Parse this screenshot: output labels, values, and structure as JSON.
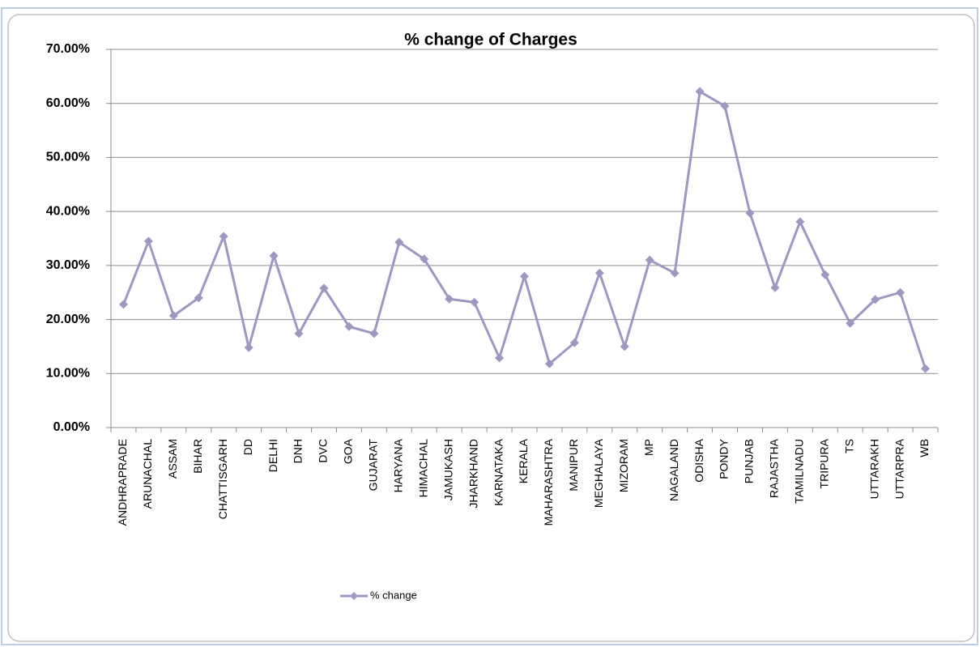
{
  "chart_data": {
    "type": "line",
    "title": "% change of Charges",
    "categories": [
      "ANDHRAPRADE",
      "ARUNACHAL",
      "ASSAM",
      "BIHAR",
      "CHATTISGARH",
      "DD",
      "DELHI",
      "DNH",
      "DVC",
      "GOA",
      "GUJARAT",
      "HARYANA",
      "HIMACHAL",
      "JAMUKASH",
      "JHARKHAND",
      "KARNATAKA",
      "KERALA",
      "MAHARASHTRA",
      "MANIPUR",
      "MEGHALAYA",
      "MIZORAM",
      "MP",
      "NAGALAND",
      "ODISHA",
      "PONDY",
      "PUNJAB",
      "RAJASTHA",
      "TAMILNADU",
      "TRIPURA",
      "TS",
      "UTTARAKH",
      "UTTARPRA",
      "WB"
    ],
    "series": [
      {
        "name": "% change",
        "color": "#9f97c2",
        "values": [
          22.8,
          34.5,
          20.7,
          24.0,
          35.4,
          14.8,
          31.8,
          17.4,
          25.8,
          18.7,
          17.4,
          34.3,
          31.2,
          23.8,
          23.2,
          12.9,
          28.0,
          11.8,
          15.7,
          28.6,
          15.0,
          31.0,
          28.6,
          62.2,
          59.5,
          39.7,
          25.9,
          38.1,
          28.3,
          19.3,
          23.7,
          25.0,
          10.9
        ]
      }
    ],
    "ylim": [
      0,
      70
    ],
    "yticks": [
      {
        "value": 0,
        "label": "0.00%"
      },
      {
        "value": 10,
        "label": "10.00%"
      },
      {
        "value": 20,
        "label": "20.00%"
      },
      {
        "value": 30,
        "label": "30.00%"
      },
      {
        "value": 40,
        "label": "40.00%"
      },
      {
        "value": 50,
        "label": "50.00%"
      },
      {
        "value": 60,
        "label": "60.00%"
      },
      {
        "value": 70,
        "label": "70.00%"
      }
    ],
    "grid": true,
    "legend": "bottom"
  }
}
